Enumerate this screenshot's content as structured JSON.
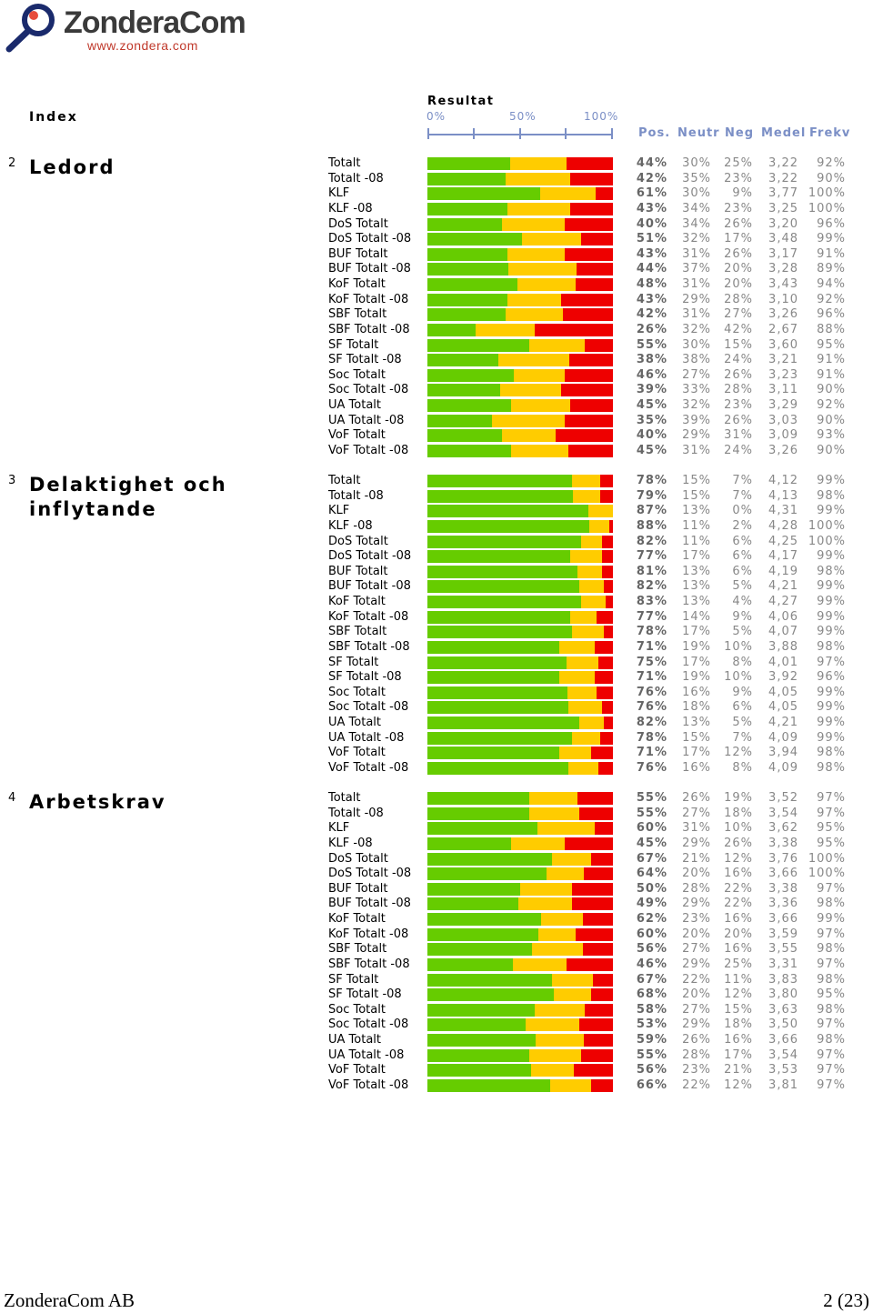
{
  "logo": {
    "name": "ZonderaCom",
    "url": "www.zondera.com"
  },
  "header": {
    "index_label": "Index",
    "result_label": "Resultat",
    "scale_labels": [
      "0%",
      "50%",
      "100%"
    ],
    "columns": [
      "Pos.",
      "Neutr",
      "Neg",
      "Medel",
      "Frekv"
    ]
  },
  "colors": {
    "pos": "#66cc00",
    "neutral": "#ffcc00",
    "neg": "#ee0000",
    "axis": "#7b8fc6"
  },
  "chart_data": {
    "type": "bar",
    "stacked": true,
    "orientation": "horizontal",
    "xlim": [
      0,
      100
    ],
    "series_names": [
      "Pos.",
      "Neutr",
      "Neg"
    ],
    "sections": [
      {
        "number": "2",
        "title": "Ledord",
        "rows": [
          {
            "label": "Totalt",
            "pos": 44,
            "neu": 30,
            "neg": 25,
            "medel": "3,22",
            "frekv": "92%"
          },
          {
            "label": "Totalt -08",
            "pos": 42,
            "neu": 35,
            "neg": 23,
            "medel": "3,22",
            "frekv": "90%"
          },
          {
            "label": "KLF",
            "pos": 61,
            "neu": 30,
            "neg": 9,
            "medel": "3,77",
            "frekv": "100%"
          },
          {
            "label": "KLF -08",
            "pos": 43,
            "neu": 34,
            "neg": 23,
            "medel": "3,25",
            "frekv": "100%"
          },
          {
            "label": "DoS Totalt",
            "pos": 40,
            "neu": 34,
            "neg": 26,
            "medel": "3,20",
            "frekv": "96%"
          },
          {
            "label": "DoS Totalt -08",
            "pos": 51,
            "neu": 32,
            "neg": 17,
            "medel": "3,48",
            "frekv": "99%"
          },
          {
            "label": "BUF Totalt",
            "pos": 43,
            "neu": 31,
            "neg": 26,
            "medel": "3,17",
            "frekv": "91%"
          },
          {
            "label": "BUF Totalt -08",
            "pos": 44,
            "neu": 37,
            "neg": 20,
            "medel": "3,28",
            "frekv": "89%"
          },
          {
            "label": "KoF Totalt",
            "pos": 48,
            "neu": 31,
            "neg": 20,
            "medel": "3,43",
            "frekv": "94%"
          },
          {
            "label": "KoF Totalt -08",
            "pos": 43,
            "neu": 29,
            "neg": 28,
            "medel": "3,10",
            "frekv": "92%"
          },
          {
            "label": "SBF Totalt",
            "pos": 42,
            "neu": 31,
            "neg": 27,
            "medel": "3,26",
            "frekv": "96%"
          },
          {
            "label": "SBF Totalt -08",
            "pos": 26,
            "neu": 32,
            "neg": 42,
            "medel": "2,67",
            "frekv": "88%"
          },
          {
            "label": "SF Totalt",
            "pos": 55,
            "neu": 30,
            "neg": 15,
            "medel": "3,60",
            "frekv": "95%"
          },
          {
            "label": "SF Totalt -08",
            "pos": 38,
            "neu": 38,
            "neg": 24,
            "medel": "3,21",
            "frekv": "91%"
          },
          {
            "label": "Soc Totalt",
            "pos": 46,
            "neu": 27,
            "neg": 26,
            "medel": "3,23",
            "frekv": "91%"
          },
          {
            "label": "Soc Totalt -08",
            "pos": 39,
            "neu": 33,
            "neg": 28,
            "medel": "3,11",
            "frekv": "90%"
          },
          {
            "label": "UA Totalt",
            "pos": 45,
            "neu": 32,
            "neg": 23,
            "medel": "3,29",
            "frekv": "92%"
          },
          {
            "label": "UA Totalt -08",
            "pos": 35,
            "neu": 39,
            "neg": 26,
            "medel": "3,03",
            "frekv": "90%"
          },
          {
            "label": "VoF Totalt",
            "pos": 40,
            "neu": 29,
            "neg": 31,
            "medel": "3,09",
            "frekv": "93%"
          },
          {
            "label": "VoF Totalt -08",
            "pos": 45,
            "neu": 31,
            "neg": 24,
            "medel": "3,26",
            "frekv": "90%"
          }
        ]
      },
      {
        "number": "3",
        "title": "Delaktighet och inflytande",
        "rows": [
          {
            "label": "Totalt",
            "pos": 78,
            "neu": 15,
            "neg": 7,
            "medel": "4,12",
            "frekv": "99%"
          },
          {
            "label": "Totalt -08",
            "pos": 79,
            "neu": 15,
            "neg": 7,
            "medel": "4,13",
            "frekv": "98%"
          },
          {
            "label": "KLF",
            "pos": 87,
            "neu": 13,
            "neg": 0,
            "medel": "4,31",
            "frekv": "99%"
          },
          {
            "label": "KLF -08",
            "pos": 88,
            "neu": 11,
            "neg": 2,
            "medel": "4,28",
            "frekv": "100%"
          },
          {
            "label": "DoS Totalt",
            "pos": 82,
            "neu": 11,
            "neg": 6,
            "medel": "4,25",
            "frekv": "100%"
          },
          {
            "label": "DoS Totalt -08",
            "pos": 77,
            "neu": 17,
            "neg": 6,
            "medel": "4,17",
            "frekv": "99%"
          },
          {
            "label": "BUF Totalt",
            "pos": 81,
            "neu": 13,
            "neg": 6,
            "medel": "4,19",
            "frekv": "98%"
          },
          {
            "label": "BUF Totalt -08",
            "pos": 82,
            "neu": 13,
            "neg": 5,
            "medel": "4,21",
            "frekv": "99%"
          },
          {
            "label": "KoF Totalt",
            "pos": 83,
            "neu": 13,
            "neg": 4,
            "medel": "4,27",
            "frekv": "99%"
          },
          {
            "label": "KoF Totalt -08",
            "pos": 77,
            "neu": 14,
            "neg": 9,
            "medel": "4,06",
            "frekv": "99%"
          },
          {
            "label": "SBF Totalt",
            "pos": 78,
            "neu": 17,
            "neg": 5,
            "medel": "4,07",
            "frekv": "99%"
          },
          {
            "label": "SBF Totalt -08",
            "pos": 71,
            "neu": 19,
            "neg": 10,
            "medel": "3,88",
            "frekv": "98%"
          },
          {
            "label": "SF Totalt",
            "pos": 75,
            "neu": 17,
            "neg": 8,
            "medel": "4,01",
            "frekv": "97%"
          },
          {
            "label": "SF Totalt -08",
            "pos": 71,
            "neu": 19,
            "neg": 10,
            "medel": "3,92",
            "frekv": "96%"
          },
          {
            "label": "Soc Totalt",
            "pos": 76,
            "neu": 16,
            "neg": 9,
            "medel": "4,05",
            "frekv": "99%"
          },
          {
            "label": "Soc Totalt -08",
            "pos": 76,
            "neu": 18,
            "neg": 6,
            "medel": "4,05",
            "frekv": "99%"
          },
          {
            "label": "UA Totalt",
            "pos": 82,
            "neu": 13,
            "neg": 5,
            "medel": "4,21",
            "frekv": "99%"
          },
          {
            "label": "UA Totalt -08",
            "pos": 78,
            "neu": 15,
            "neg": 7,
            "medel": "4,09",
            "frekv": "99%"
          },
          {
            "label": "VoF Totalt",
            "pos": 71,
            "neu": 17,
            "neg": 12,
            "medel": "3,94",
            "frekv": "98%"
          },
          {
            "label": "VoF Totalt -08",
            "pos": 76,
            "neu": 16,
            "neg": 8,
            "medel": "4,09",
            "frekv": "98%"
          }
        ]
      },
      {
        "number": "4",
        "title": "Arbetskrav",
        "rows": [
          {
            "label": "Totalt",
            "pos": 55,
            "neu": 26,
            "neg": 19,
            "medel": "3,52",
            "frekv": "97%"
          },
          {
            "label": "Totalt -08",
            "pos": 55,
            "neu": 27,
            "neg": 18,
            "medel": "3,54",
            "frekv": "97%"
          },
          {
            "label": "KLF",
            "pos": 60,
            "neu": 31,
            "neg": 10,
            "medel": "3,62",
            "frekv": "95%"
          },
          {
            "label": "KLF -08",
            "pos": 45,
            "neu": 29,
            "neg": 26,
            "medel": "3,38",
            "frekv": "95%"
          },
          {
            "label": "DoS Totalt",
            "pos": 67,
            "neu": 21,
            "neg": 12,
            "medel": "3,76",
            "frekv": "100%"
          },
          {
            "label": "DoS Totalt -08",
            "pos": 64,
            "neu": 20,
            "neg": 16,
            "medel": "3,66",
            "frekv": "100%"
          },
          {
            "label": "BUF Totalt",
            "pos": 50,
            "neu": 28,
            "neg": 22,
            "medel": "3,38",
            "frekv": "97%"
          },
          {
            "label": "BUF Totalt -08",
            "pos": 49,
            "neu": 29,
            "neg": 22,
            "medel": "3,36",
            "frekv": "98%"
          },
          {
            "label": "KoF Totalt",
            "pos": 62,
            "neu": 23,
            "neg": 16,
            "medel": "3,66",
            "frekv": "99%"
          },
          {
            "label": "KoF Totalt -08",
            "pos": 60,
            "neu": 20,
            "neg": 20,
            "medel": "3,59",
            "frekv": "97%"
          },
          {
            "label": "SBF Totalt",
            "pos": 56,
            "neu": 27,
            "neg": 16,
            "medel": "3,55",
            "frekv": "98%"
          },
          {
            "label": "SBF Totalt -08",
            "pos": 46,
            "neu": 29,
            "neg": 25,
            "medel": "3,31",
            "frekv": "97%"
          },
          {
            "label": "SF Totalt",
            "pos": 67,
            "neu": 22,
            "neg": 11,
            "medel": "3,83",
            "frekv": "98%"
          },
          {
            "label": "SF Totalt -08",
            "pos": 68,
            "neu": 20,
            "neg": 12,
            "medel": "3,80",
            "frekv": "95%"
          },
          {
            "label": "Soc Totalt",
            "pos": 58,
            "neu": 27,
            "neg": 15,
            "medel": "3,63",
            "frekv": "98%"
          },
          {
            "label": "Soc Totalt -08",
            "pos": 53,
            "neu": 29,
            "neg": 18,
            "medel": "3,50",
            "frekv": "97%"
          },
          {
            "label": "UA Totalt",
            "pos": 59,
            "neu": 26,
            "neg": 16,
            "medel": "3,66",
            "frekv": "98%"
          },
          {
            "label": "UA Totalt -08",
            "pos": 55,
            "neu": 28,
            "neg": 17,
            "medel": "3,54",
            "frekv": "97%"
          },
          {
            "label": "VoF Totalt",
            "pos": 56,
            "neu": 23,
            "neg": 21,
            "medel": "3,53",
            "frekv": "97%"
          },
          {
            "label": "VoF Totalt -08",
            "pos": 66,
            "neu": 22,
            "neg": 12,
            "medel": "3,81",
            "frekv": "97%"
          }
        ]
      }
    ]
  },
  "footer": {
    "company": "ZonderaCom AB",
    "page": "2 (23)"
  }
}
